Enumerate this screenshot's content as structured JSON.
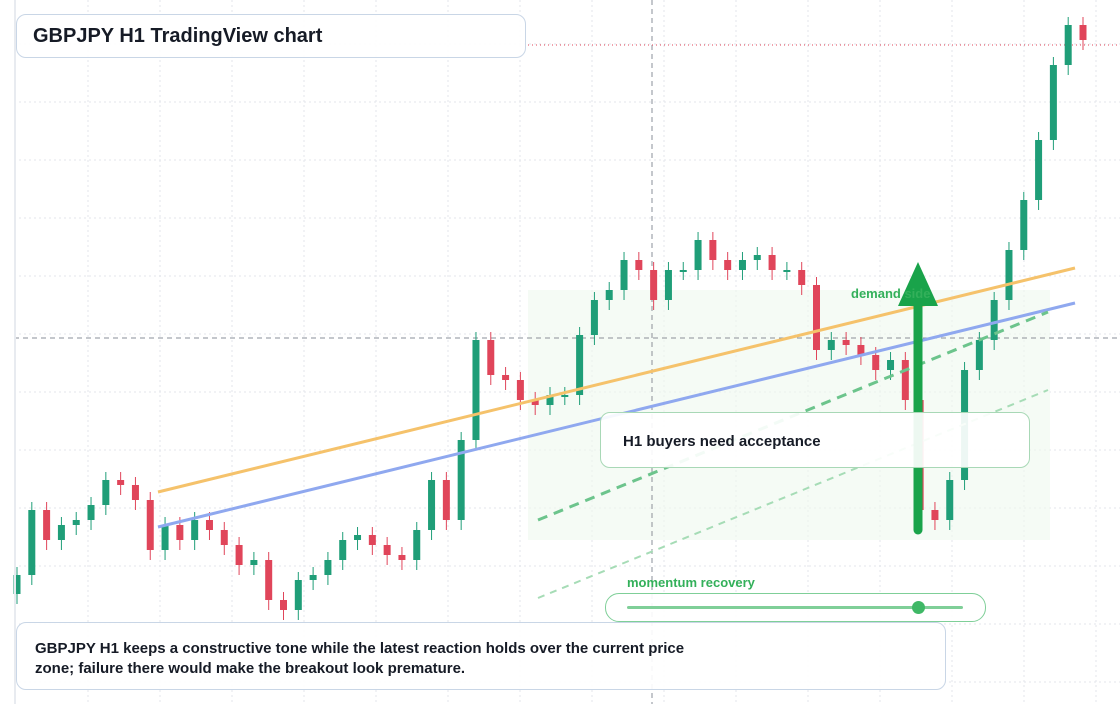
{
  "chart_data": {
    "type": "candlestick",
    "title": "GBPJPY H1 TradingView chart",
    "annotations": {
      "zone": "demand side",
      "callout": "H1 buyers need acceptance",
      "slider": "momentum recovery"
    },
    "note": "GBPJPY H1 keeps a constructive tone while the latest reaction holds over the current price zone; failure there would make the breakout look premature.",
    "ylim": [
      0,
      704
    ],
    "up_color": "#1f9e78",
    "down_color": "#e0455a",
    "open": [
      110,
      129,
      194,
      164,
      179,
      184,
      199,
      224,
      219,
      204,
      154,
      179,
      164,
      184,
      174,
      159,
      139,
      144,
      104,
      94,
      124,
      129,
      144,
      164,
      169,
      159,
      149,
      144,
      174,
      224,
      184,
      264,
      364,
      329,
      324,
      304,
      299,
      309,
      309,
      369,
      404,
      414,
      444,
      434,
      404,
      434,
      434,
      464,
      444,
      434,
      444,
      449,
      434,
      434,
      419,
      354,
      364,
      359,
      349,
      334,
      344,
      304,
      194,
      184,
      224,
      334,
      364,
      404,
      454,
      504,
      564,
      639,
      679
    ],
    "high": [
      137,
      202,
      202,
      187,
      192,
      207,
      232,
      232,
      227,
      212,
      187,
      187,
      192,
      192,
      182,
      167,
      152,
      152,
      112,
      132,
      137,
      152,
      172,
      177,
      177,
      167,
      157,
      182,
      232,
      232,
      272,
      372,
      372,
      337,
      332,
      312,
      317,
      317,
      377,
      412,
      422,
      452,
      452,
      442,
      442,
      442,
      472,
      472,
      452,
      452,
      457,
      457,
      442,
      442,
      427,
      372,
      372,
      367,
      357,
      352,
      352,
      312,
      202,
      232,
      342,
      372,
      412,
      462,
      512,
      572,
      647,
      687,
      687
    ],
    "low": [
      100,
      119,
      154,
      154,
      169,
      174,
      189,
      209,
      194,
      144,
      144,
      154,
      154,
      164,
      149,
      129,
      129,
      94,
      84,
      84,
      114,
      119,
      134,
      154,
      149,
      139,
      134,
      134,
      164,
      174,
      174,
      254,
      319,
      314,
      294,
      289,
      289,
      299,
      299,
      359,
      394,
      404,
      424,
      394,
      394,
      424,
      424,
      434,
      424,
      424,
      434,
      424,
      424,
      409,
      344,
      344,
      349,
      339,
      324,
      324,
      294,
      184,
      174,
      174,
      214,
      324,
      354,
      394,
      444,
      494,
      554,
      629,
      654
    ],
    "close": [
      129,
      194,
      164,
      179,
      184,
      199,
      224,
      219,
      204,
      154,
      179,
      164,
      184,
      174,
      159,
      139,
      144,
      104,
      94,
      124,
      129,
      144,
      164,
      169,
      159,
      149,
      144,
      174,
      224,
      184,
      264,
      364,
      329,
      324,
      304,
      299,
      309,
      309,
      369,
      404,
      414,
      444,
      434,
      404,
      434,
      434,
      464,
      444,
      434,
      444,
      449,
      434,
      434,
      419,
      354,
      364,
      359,
      349,
      334,
      344,
      304,
      194,
      184,
      224,
      334,
      364,
      404,
      454,
      504,
      564,
      639,
      679,
      664
    ]
  }
}
